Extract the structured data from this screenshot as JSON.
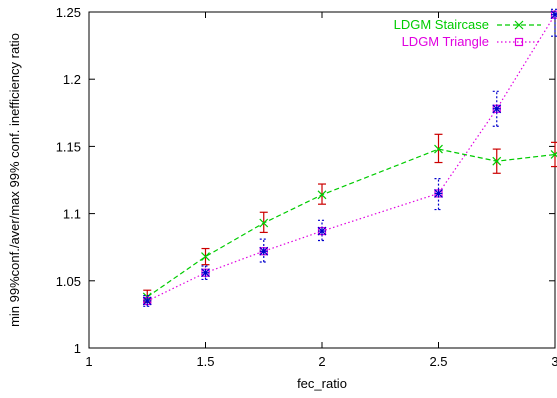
{
  "chart_data": {
    "type": "line",
    "title": "",
    "xlabel": "fec_ratio",
    "ylabel": "min 99%conf./aver/max 99% conf. inefficiency ratio",
    "xlim": [
      1,
      3
    ],
    "ylim": [
      1,
      1.25
    ],
    "xticks": [
      "1",
      "1.5",
      "2",
      "2.5",
      "3"
    ],
    "yticks": [
      "1",
      "1.05",
      "1.1",
      "1.15",
      "1.2",
      "1.25"
    ],
    "grid": false,
    "legend_position": "top-right",
    "series": [
      {
        "name": "LDGM Staircase",
        "color": "#00cc00",
        "errorbar_color": "#cc0000",
        "marker": "x",
        "line_style": "dashed",
        "x": [
          1.25,
          1.5,
          1.75,
          2.0,
          2.5,
          2.75,
          3.0
        ],
        "y": [
          1.038,
          1.068,
          1.093,
          1.114,
          1.148,
          1.139,
          1.144
        ],
        "ymin": [
          1.034,
          1.062,
          1.086,
          1.107,
          1.138,
          1.13,
          1.135
        ],
        "ymax": [
          1.043,
          1.074,
          1.101,
          1.122,
          1.159,
          1.148,
          1.153
        ]
      },
      {
        "name": "LDGM Triangle",
        "color": "#e000e0",
        "errorbar_color": "#0000cc",
        "marker": "square-x",
        "line_style": "dotted",
        "x": [
          1.25,
          1.5,
          1.75,
          2.0,
          2.5,
          2.75,
          3.0
        ],
        "y": [
          1.035,
          1.056,
          1.072,
          1.087,
          1.115,
          1.178,
          1.248
        ],
        "ymin": [
          1.031,
          1.051,
          1.064,
          1.08,
          1.103,
          1.165,
          1.232
        ],
        "ymax": [
          1.039,
          1.061,
          1.081,
          1.095,
          1.126,
          1.191,
          1.252
        ]
      }
    ]
  }
}
